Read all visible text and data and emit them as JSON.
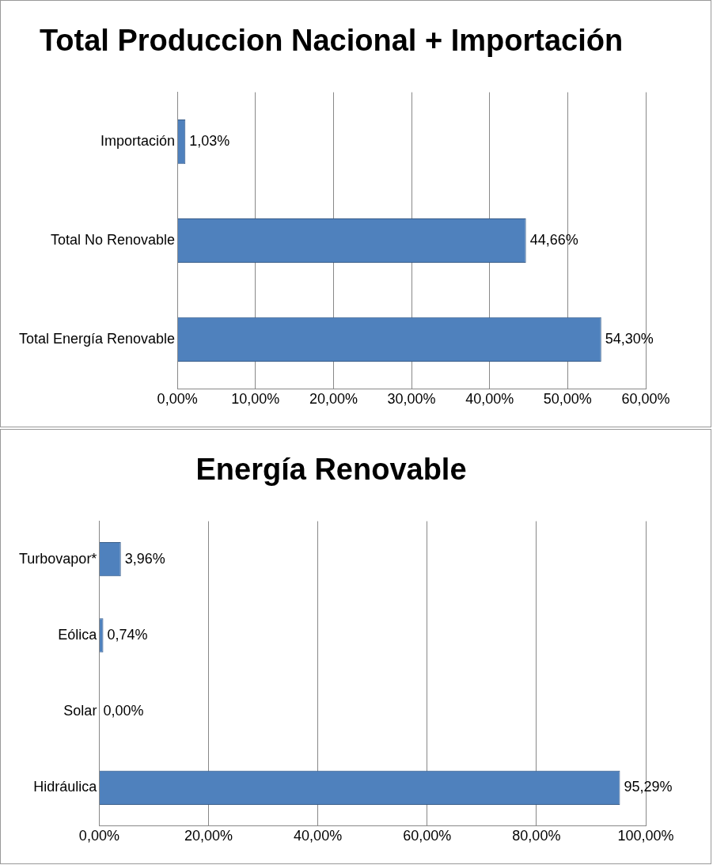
{
  "chart_data": [
    {
      "type": "bar",
      "title": "Total Produccion Nacional + Importación",
      "orientation": "horizontal",
      "categories": [
        "Importación",
        "Total No Renovable",
        "Total Energía Renovable"
      ],
      "values": [
        1.03,
        44.66,
        54.3
      ],
      "value_labels": [
        "1,03%",
        "44,66%",
        "54,30%"
      ],
      "color": "#4f81bd",
      "xlim": [
        0,
        60
      ],
      "xticks": [
        {
          "value": 0,
          "label": "0,00%"
        },
        {
          "value": 10,
          "label": "10,00%"
        },
        {
          "value": 20,
          "label": "20,00%"
        },
        {
          "value": 30,
          "label": "30,00%"
        },
        {
          "value": 40,
          "label": "40,00%"
        },
        {
          "value": 50,
          "label": "50,00%"
        },
        {
          "value": 60,
          "label": "60,00%"
        }
      ],
      "grid": "x",
      "legend": false
    },
    {
      "type": "bar",
      "title": "Energía Renovable",
      "orientation": "horizontal",
      "categories": [
        "Turbovapor*",
        "Eólica",
        "Solar",
        "Hidráulica"
      ],
      "values": [
        3.96,
        0.74,
        0.0,
        95.29
      ],
      "value_labels": [
        "3,96%",
        "0,74%",
        "0,00%",
        "95,29%"
      ],
      "color": "#4f81bd",
      "xlim": [
        0,
        100
      ],
      "xticks": [
        {
          "value": 0,
          "label": "0,00%"
        },
        {
          "value": 20,
          "label": "20,00%"
        },
        {
          "value": 40,
          "label": "40,00%"
        },
        {
          "value": 60,
          "label": "60,00%"
        },
        {
          "value": 80,
          "label": "80,00%"
        },
        {
          "value": 100,
          "label": "100,00%"
        }
      ],
      "grid": "x",
      "legend": false
    }
  ]
}
